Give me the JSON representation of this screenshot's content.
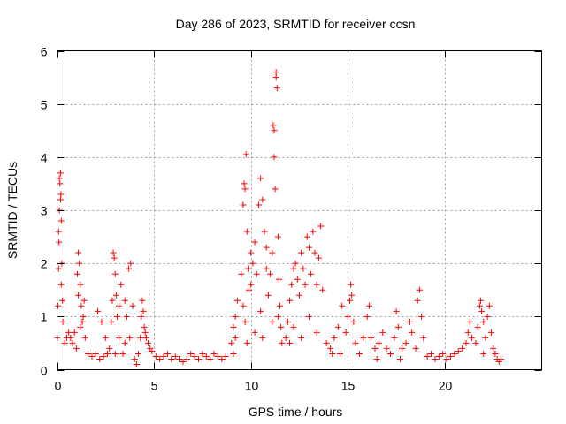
{
  "chart_data": {
    "type": "scatter",
    "title": "Day 286 of 2023, SRMTID for receiver ccsn",
    "xlabel": "GPS time / hours",
    "ylabel": "SRMTID / TECUs",
    "xlim": [
      0,
      25
    ],
    "ylim": [
      0,
      6
    ],
    "xticks": [
      "0",
      "5",
      "10",
      "15",
      "20"
    ],
    "yticks": [
      "0",
      "1",
      "2",
      "3",
      "4",
      "5",
      "6"
    ],
    "grid": true,
    "marker": "+",
    "color": "#ff0000",
    "series": [
      {
        "name": "SRMTID",
        "description": "dense scatter; points listed as [hours, TECU] samples",
        "points": [
          [
            0.02,
            0.6
          ],
          [
            0.05,
            1.2
          ],
          [
            0.08,
            1.9
          ],
          [
            0.1,
            2.4
          ],
          [
            0.12,
            3.0
          ],
          [
            0.15,
            3.5
          ],
          [
            0.18,
            3.7
          ],
          [
            0.2,
            3.3
          ],
          [
            0.22,
            2.8
          ],
          [
            0.25,
            2.0
          ],
          [
            0.28,
            1.3
          ],
          [
            0.3,
            0.9
          ],
          [
            0.12,
            3.6
          ],
          [
            0.18,
            3.2
          ],
          [
            0.08,
            2.6
          ],
          [
            0.22,
            1.6
          ],
          [
            0.4,
            0.5
          ],
          [
            0.5,
            0.6
          ],
          [
            0.6,
            0.7
          ],
          [
            0.7,
            0.6
          ],
          [
            0.8,
            0.5
          ],
          [
            0.9,
            0.7
          ],
          [
            1.0,
            0.4
          ],
          [
            1.05,
            1.8
          ],
          [
            1.1,
            2.2
          ],
          [
            1.15,
            2.0
          ],
          [
            1.2,
            1.6
          ],
          [
            1.25,
            1.2
          ],
          [
            1.3,
            0.9
          ],
          [
            1.35,
            1.0
          ],
          [
            1.4,
            1.3
          ],
          [
            1.45,
            0.6
          ],
          [
            1.1,
            1.4
          ],
          [
            1.2,
            0.8
          ],
          [
            1.6,
            0.3
          ],
          [
            1.8,
            0.25
          ],
          [
            2.0,
            0.3
          ],
          [
            2.2,
            0.2
          ],
          [
            2.4,
            0.25
          ],
          [
            2.6,
            0.3
          ],
          [
            2.1,
            1.1
          ],
          [
            2.3,
            0.9
          ],
          [
            2.5,
            0.6
          ],
          [
            2.7,
            0.4
          ],
          [
            2.8,
            0.9
          ],
          [
            2.85,
            1.3
          ],
          [
            2.9,
            2.2
          ],
          [
            2.95,
            2.1
          ],
          [
            3.0,
            1.8
          ],
          [
            3.05,
            1.4
          ],
          [
            3.1,
            1.0
          ],
          [
            3.2,
            1.2
          ],
          [
            3.3,
            1.6
          ],
          [
            3.2,
            0.6
          ],
          [
            3.0,
            0.3
          ],
          [
            3.5,
            1.3
          ],
          [
            3.6,
            1.0
          ],
          [
            3.7,
            1.9
          ],
          [
            3.8,
            2.0
          ],
          [
            3.9,
            1.2
          ],
          [
            3.75,
            0.6
          ],
          [
            3.5,
            0.5
          ],
          [
            3.4,
            0.3
          ],
          [
            4.0,
            0.2
          ],
          [
            4.1,
            0.1
          ],
          [
            4.2,
            0.3
          ],
          [
            4.3,
            0.6
          ],
          [
            4.35,
            1.0
          ],
          [
            4.4,
            1.3
          ],
          [
            4.45,
            1.1
          ],
          [
            4.5,
            0.8
          ],
          [
            4.6,
            0.6
          ],
          [
            4.7,
            0.5
          ],
          [
            4.8,
            0.4
          ],
          [
            4.9,
            0.35
          ],
          [
            4.55,
            0.7
          ],
          [
            5.1,
            0.25
          ],
          [
            5.3,
            0.2
          ],
          [
            5.5,
            0.25
          ],
          [
            5.7,
            0.3
          ],
          [
            5.9,
            0.2
          ],
          [
            6.1,
            0.25
          ],
          [
            6.3,
            0.2
          ],
          [
            6.5,
            0.15
          ],
          [
            6.7,
            0.2
          ],
          [
            6.9,
            0.3
          ],
          [
            7.1,
            0.25
          ],
          [
            7.3,
            0.2
          ],
          [
            7.5,
            0.3
          ],
          [
            7.7,
            0.25
          ],
          [
            7.9,
            0.2
          ],
          [
            8.1,
            0.3
          ],
          [
            8.3,
            0.25
          ],
          [
            8.5,
            0.2
          ],
          [
            8.7,
            0.25
          ],
          [
            9.0,
            0.5
          ],
          [
            9.1,
            0.8
          ],
          [
            9.2,
            1.0
          ],
          [
            9.3,
            1.3
          ],
          [
            9.1,
            0.3
          ],
          [
            9.2,
            0.6
          ],
          [
            9.5,
            1.8
          ],
          [
            9.6,
            3.1
          ],
          [
            9.65,
            3.5
          ],
          [
            9.7,
            3.4
          ],
          [
            9.75,
            4.05
          ],
          [
            9.8,
            2.6
          ],
          [
            9.85,
            1.9
          ],
          [
            9.9,
            1.5
          ],
          [
            9.7,
            0.9
          ],
          [
            9.8,
            0.5
          ],
          [
            9.6,
            1.2
          ],
          [
            10.0,
            2.2
          ],
          [
            10.1,
            2.0
          ],
          [
            10.2,
            2.4
          ],
          [
            10.3,
            1.8
          ],
          [
            10.4,
            3.1
          ],
          [
            10.5,
            3.6
          ],
          [
            10.6,
            3.2
          ],
          [
            10.7,
            2.6
          ],
          [
            10.8,
            1.9
          ],
          [
            10.9,
            1.4
          ],
          [
            10.5,
            1.1
          ],
          [
            10.2,
            0.7
          ],
          [
            10.6,
            0.6
          ],
          [
            10.8,
            2.3
          ],
          [
            10.0,
            1.6
          ],
          [
            11.0,
            1.8
          ],
          [
            11.1,
            2.2
          ],
          [
            11.15,
            4.6
          ],
          [
            11.2,
            4.0
          ],
          [
            11.25,
            3.4
          ],
          [
            11.3,
            5.5
          ],
          [
            11.35,
            5.3
          ],
          [
            11.4,
            2.5
          ],
          [
            11.45,
            1.7
          ],
          [
            11.5,
            1.2
          ],
          [
            11.55,
            0.8
          ],
          [
            11.6,
            0.5
          ],
          [
            11.3,
            5.6
          ],
          [
            11.2,
            4.5
          ],
          [
            11.4,
            1.0
          ],
          [
            11.1,
            0.9
          ],
          [
            11.8,
            0.6
          ],
          [
            11.9,
            0.9
          ],
          [
            12.0,
            1.3
          ],
          [
            12.1,
            1.6
          ],
          [
            12.2,
            1.9
          ],
          [
            12.3,
            2.0
          ],
          [
            12.4,
            1.7
          ],
          [
            12.5,
            1.4
          ],
          [
            12.6,
            2.2
          ],
          [
            12.7,
            1.9
          ],
          [
            12.8,
            1.6
          ],
          [
            12.9,
            2.5
          ],
          [
            13.0,
            2.3
          ],
          [
            13.1,
            1.8
          ],
          [
            13.2,
            2.6
          ],
          [
            13.3,
            2.2
          ],
          [
            13.4,
            1.6
          ],
          [
            13.5,
            2.1
          ],
          [
            13.6,
            2.7
          ],
          [
            13.7,
            1.5
          ],
          [
            12.2,
            0.8
          ],
          [
            12.6,
            0.6
          ],
          [
            13.0,
            1.0
          ],
          [
            13.4,
            0.7
          ],
          [
            12.0,
            0.5
          ],
          [
            13.9,
            0.5
          ],
          [
            14.1,
            0.4
          ],
          [
            14.3,
            0.6
          ],
          [
            14.5,
            0.8
          ],
          [
            14.7,
            1.2
          ],
          [
            14.9,
            0.7
          ],
          [
            15.0,
            1.0
          ],
          [
            15.1,
            1.3
          ],
          [
            15.15,
            1.6
          ],
          [
            15.2,
            1.4
          ],
          [
            15.3,
            0.9
          ],
          [
            15.4,
            0.5
          ],
          [
            14.6,
            0.3
          ],
          [
            14.2,
            0.3
          ],
          [
            15.6,
            0.3
          ],
          [
            15.8,
            0.6
          ],
          [
            16.0,
            1.0
          ],
          [
            16.1,
            1.2
          ],
          [
            16.2,
            0.6
          ],
          [
            16.4,
            0.4
          ],
          [
            16.6,
            0.5
          ],
          [
            16.8,
            0.7
          ],
          [
            17.0,
            0.4
          ],
          [
            17.2,
            0.3
          ],
          [
            17.4,
            0.6
          ],
          [
            17.5,
            1.1
          ],
          [
            17.6,
            0.8
          ],
          [
            17.8,
            0.4
          ],
          [
            18.0,
            0.5
          ],
          [
            18.2,
            0.9
          ],
          [
            18.3,
            0.7
          ],
          [
            18.5,
            0.4
          ],
          [
            18.6,
            1.3
          ],
          [
            18.7,
            1.5
          ],
          [
            18.8,
            1.0
          ],
          [
            18.9,
            0.6
          ],
          [
            16.5,
            0.2
          ],
          [
            17.7,
            0.2
          ],
          [
            19.1,
            0.25
          ],
          [
            19.3,
            0.3
          ],
          [
            19.5,
            0.2
          ],
          [
            19.7,
            0.25
          ],
          [
            19.9,
            0.3
          ],
          [
            20.1,
            0.2
          ],
          [
            20.3,
            0.25
          ],
          [
            20.5,
            0.3
          ],
          [
            20.7,
            0.35
          ],
          [
            20.9,
            0.4
          ],
          [
            21.1,
            0.5
          ],
          [
            21.2,
            0.7
          ],
          [
            21.3,
            0.9
          ],
          [
            21.4,
            0.6
          ],
          [
            21.6,
            0.5
          ],
          [
            21.7,
            0.8
          ],
          [
            21.8,
            1.2
          ],
          [
            21.85,
            1.3
          ],
          [
            21.9,
            1.1
          ],
          [
            22.0,
            0.9
          ],
          [
            22.1,
            0.6
          ],
          [
            22.2,
            1.0
          ],
          [
            22.3,
            1.2
          ],
          [
            22.4,
            0.7
          ],
          [
            22.5,
            0.4
          ],
          [
            22.6,
            0.3
          ],
          [
            22.7,
            0.2
          ],
          [
            22.8,
            0.15
          ],
          [
            22.9,
            0.2
          ],
          [
            22.0,
            0.3
          ]
        ]
      }
    ]
  }
}
